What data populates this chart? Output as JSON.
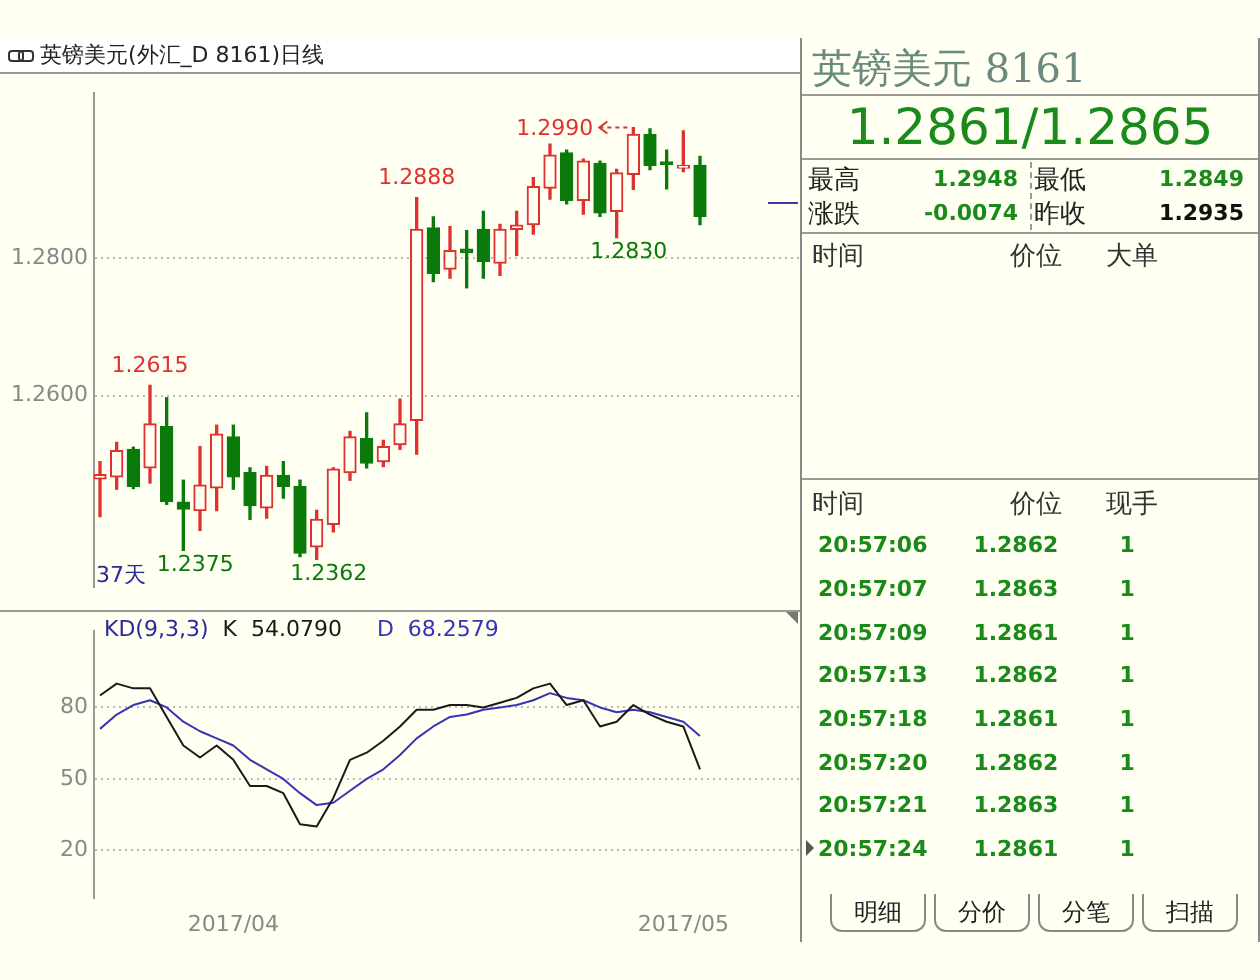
{
  "chart_data": [
    {
      "type": "candlestick",
      "title": "英镑美元(外汇_D 8161)日线",
      "categories": [
        null,
        null,
        null,
        null,
        null,
        null,
        null,
        null,
        null,
        null,
        null,
        null,
        null,
        null,
        null,
        null,
        null,
        null,
        null,
        null,
        null,
        null,
        null,
        null,
        null,
        null,
        null,
        null,
        null,
        null,
        null,
        null,
        null,
        null,
        null,
        null,
        null
      ],
      "ohlc": [
        [
          1.2479,
          1.2504,
          1.2424,
          1.2485
        ],
        [
          1.2482,
          1.2532,
          1.2464,
          1.252
        ],
        [
          1.2522,
          1.2525,
          1.2465,
          1.2468
        ],
        [
          1.2495,
          1.2615,
          1.2473,
          1.2559
        ],
        [
          1.2555,
          1.2597,
          1.2442,
          1.2446
        ],
        [
          1.2445,
          1.2477,
          1.2375,
          1.2435
        ],
        [
          1.2433,
          1.2526,
          1.2404,
          1.247
        ],
        [
          1.2466,
          1.2557,
          1.2433,
          1.2544
        ],
        [
          1.254,
          1.2557,
          1.2464,
          1.2482
        ],
        [
          1.2488,
          1.2495,
          1.242,
          1.244
        ],
        [
          1.2437,
          1.2497,
          1.2422,
          1.2484
        ],
        [
          1.2484,
          1.2504,
          1.2451,
          1.2468
        ],
        [
          1.2468,
          1.2477,
          1.2366,
          1.2371
        ],
        [
          1.238,
          1.2433,
          1.2362,
          1.242
        ],
        [
          1.2413,
          1.2495,
          1.2402,
          1.2493
        ],
        [
          1.2488,
          1.2548,
          1.2477,
          1.254
        ],
        [
          1.2538,
          1.2575,
          1.2495,
          1.2502
        ],
        [
          1.2504,
          1.2535,
          1.2497,
          1.2526
        ],
        [
          1.2529,
          1.2595,
          1.2522,
          1.2559
        ],
        [
          1.2564,
          1.2888,
          1.2515,
          1.2842
        ],
        [
          1.2844,
          1.286,
          1.2766,
          1.2778
        ],
        [
          1.2784,
          1.2846,
          1.2771,
          1.2811
        ],
        [
          1.2813,
          1.284,
          1.2757,
          1.2808
        ],
        [
          1.2842,
          1.2868,
          1.2771,
          1.2795
        ],
        [
          1.2793,
          1.2849,
          1.2775,
          1.2842
        ],
        [
          1.2842,
          1.2868,
          1.2804,
          1.2848
        ],
        [
          1.2849,
          1.2917,
          1.2835,
          1.2904
        ],
        [
          1.2902,
          1.2966,
          1.2886,
          1.295
        ],
        [
          1.2953,
          1.2957,
          1.2879,
          1.2884
        ],
        [
          1.2884,
          1.2944,
          1.2864,
          1.2941
        ],
        [
          1.2938,
          1.2941,
          1.2861,
          1.2866
        ],
        [
          1.2868,
          1.2929,
          1.283,
          1.2924
        ],
        [
          1.2922,
          1.299,
          1.29,
          1.298
        ],
        [
          1.298,
          1.2988,
          1.2929,
          1.2935
        ],
        [
          1.294,
          1.2957,
          1.2901,
          1.2936
        ],
        [
          1.2931,
          1.2985,
          1.2926,
          1.2935
        ],
        [
          1.2935,
          1.2948,
          1.2849,
          1.2861
        ]
      ],
      "ylim": [
        1.2322,
        1.304
      ],
      "yticks": [
        {
          "value": 1.28,
          "label": "1.2800"
        },
        {
          "value": 1.26,
          "label": "1.2600"
        }
      ],
      "grid": "y",
      "tick_labels": "y",
      "legend": false,
      "annotations": [
        "1.2615",
        "1.2375",
        "1.2362",
        "1.2888",
        "1.2990",
        "1.2830",
        "37天"
      ]
    },
    {
      "type": "line",
      "title": "KD(9,3,3)",
      "categories": [
        null,
        null,
        null,
        null,
        null,
        null,
        null,
        null,
        "2017/04",
        null,
        null,
        null,
        null,
        null,
        null,
        null,
        null,
        null,
        null,
        null,
        null,
        null,
        null,
        null,
        null,
        null,
        null,
        null,
        null,
        null,
        null,
        null,
        null,
        null,
        null,
        "2017/05",
        null
      ],
      "series": [
        {
          "name": "K",
          "color": "#1a1a1a",
          "values": [
            85,
            90,
            88,
            88,
            76,
            64,
            59,
            64,
            58,
            47,
            47,
            44,
            31,
            30,
            42,
            58,
            61,
            66,
            72,
            79,
            79,
            81,
            81,
            80,
            82,
            84,
            88,
            90,
            81,
            83,
            72,
            74,
            81,
            77,
            74,
            72,
            54
          ]
        },
        {
          "name": "D",
          "color": "#3535b5",
          "values": [
            71,
            77,
            81,
            83,
            80,
            74,
            70,
            67,
            64,
            58,
            54,
            50,
            44,
            39,
            40,
            45,
            50,
            54,
            60,
            67,
            72,
            76,
            77,
            79,
            80,
            81,
            83,
            86,
            84,
            83,
            80,
            78,
            79,
            78,
            76,
            74,
            68
          ]
        }
      ],
      "annotations": [
        "54.0790",
        "68.2579"
      ],
      "ylim": [
        0,
        112
      ],
      "yticks": [
        20,
        50,
        80
      ],
      "grid": "y",
      "legend": false,
      "marker": "none",
      "line_style": "solid"
    },
    {
      "type": "other",
      "title": "英镑美元 8161",
      "subtitle": "1.2861/1.2865",
      "annotations": [
        "最高",
        "1.2948",
        "最低",
        "1.2849",
        "涨跌",
        "-0.0074",
        "昨收",
        "1.2935",
        "时间",
        "价位",
        "大单",
        "时间",
        "价位",
        "现手",
        "20:57:06",
        "1.2862",
        "1",
        "20:57:07",
        "1.2863",
        "1",
        "20:57:09",
        "1.2861",
        "1",
        "20:57:13",
        "1.2862",
        "1",
        "20:57:18",
        "1.2861",
        "1",
        "20:57:20",
        "1.2862",
        "1",
        "20:57:21",
        "1.2863",
        "1",
        "20:57:24",
        "1.2861",
        "1",
        "明细",
        "分价",
        "分笔",
        "扫描"
      ]
    }
  ]
}
